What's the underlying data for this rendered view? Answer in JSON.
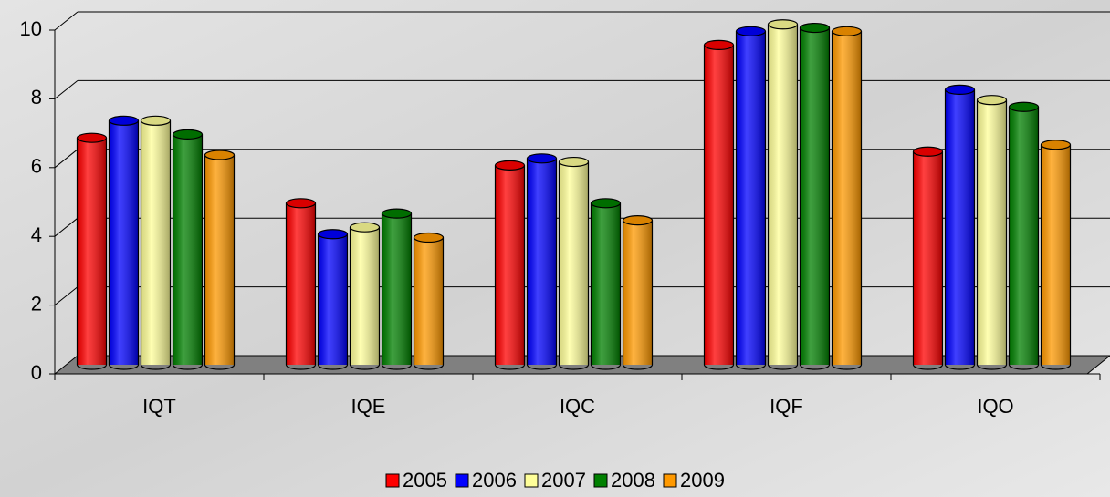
{
  "chart_data": {
    "type": "bar3d",
    "categories": [
      "IQT",
      "IQE",
      "IQC",
      "IQF",
      "IQO"
    ],
    "series": [
      {
        "name": "2005",
        "color": "#ff0000",
        "values": [
          6.6,
          4.7,
          5.8,
          9.3,
          6.2
        ]
      },
      {
        "name": "2006",
        "color": "#0000ff",
        "values": [
          7.1,
          3.8,
          6.0,
          9.7,
          8.0
        ]
      },
      {
        "name": "2007",
        "color": "#ffff99",
        "values": [
          7.1,
          4.0,
          5.9,
          9.9,
          7.7
        ]
      },
      {
        "name": "2008",
        "color": "#008000",
        "values": [
          6.7,
          4.4,
          4.7,
          9.8,
          7.5
        ]
      },
      {
        "name": "2009",
        "color": "#ff9900",
        "values": [
          6.1,
          3.7,
          4.2,
          9.7,
          6.4
        ]
      }
    ],
    "ylim": [
      0,
      10
    ],
    "yticks": [
      0,
      2,
      4,
      6,
      8,
      10
    ],
    "grid": true,
    "legend": "bottom"
  }
}
